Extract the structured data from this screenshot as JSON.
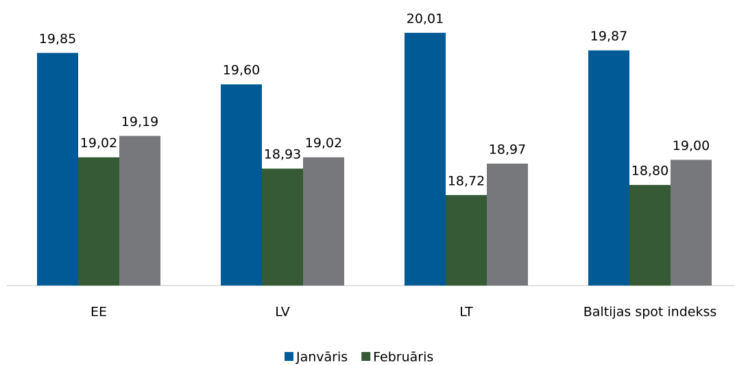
{
  "chart_data": {
    "type": "bar",
    "categories": [
      "EE",
      "LV",
      "LT",
      "Baltijas spot indekss"
    ],
    "series": [
      {
        "name": "Janvāris",
        "color": "#005a96",
        "values": [
          19.85,
          19.6,
          20.01,
          19.87
        ],
        "value_labels": [
          "19,85",
          "19,60",
          "20,01",
          "19,87"
        ]
      },
      {
        "name": "Februāris",
        "color": "#355a35",
        "values": [
          19.02,
          18.93,
          18.72,
          18.8
        ],
        "value_labels": [
          "19,02",
          "18,93",
          "18,72",
          "18,80"
        ]
      },
      {
        "color": "#77787b",
        "values": [
          19.19,
          19.02,
          18.97,
          19.0
        ],
        "value_labels": [
          "19,19",
          "19,02",
          "18,97",
          "19,00"
        ]
      }
    ],
    "ylim": [
      18,
      20.2
    ],
    "legend": "bottom"
  }
}
